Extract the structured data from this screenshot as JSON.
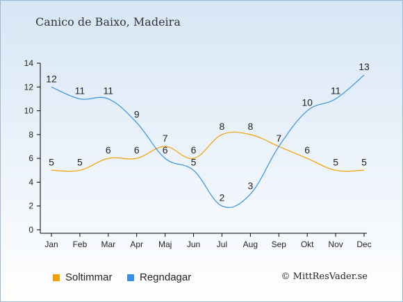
{
  "title": "Canico de Baixo, Madeira",
  "credit": "© MittResVader.se",
  "colors": {
    "sun": "#f5a000",
    "rain": "#3592e4",
    "axis": "#000000"
  },
  "chart_data": {
    "type": "line",
    "categories": [
      "Jan",
      "Feb",
      "Mar",
      "Apr",
      "Maj",
      "Jun",
      "Jul",
      "Aug",
      "Sep",
      "Okt",
      "Nov",
      "Dec"
    ],
    "ylim": [
      0,
      14
    ],
    "yticks": [
      0,
      2,
      4,
      6,
      8,
      10,
      12,
      14
    ],
    "grid": false,
    "legend": "bottom-left",
    "series": [
      {
        "name": "Soltimmar",
        "color": "#f5a000",
        "values": [
          5,
          5,
          6,
          6,
          7,
          6,
          8,
          8,
          7,
          6,
          5,
          5
        ]
      },
      {
        "name": "Regndagar",
        "color": "#3592e4",
        "values": [
          12,
          11,
          11,
          9,
          6,
          5,
          2,
          3,
          7,
          10,
          11,
          13
        ]
      }
    ]
  }
}
